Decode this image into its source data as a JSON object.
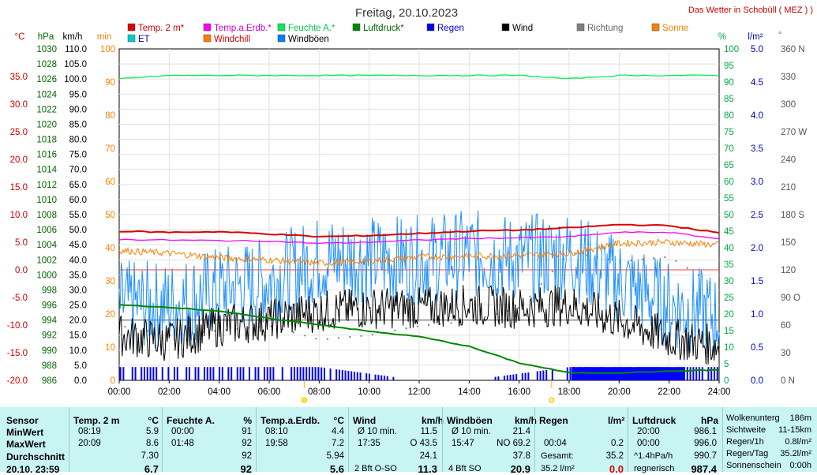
{
  "header": {
    "title": "Freitag, 20.10.2023",
    "site": "Das Wetter in Schobüll ( MEZ ) )"
  },
  "legend": [
    {
      "label": "Temp. 2 m*",
      "color": "#dd0000",
      "text_color": "#cc0000"
    },
    {
      "label": "Temp.a.Erdb.*",
      "color": "#ff00ff",
      "text_color": "#cc00cc"
    },
    {
      "label": "Feuchte A.*",
      "color": "#00ee55",
      "text_color": "#00cc44"
    },
    {
      "label": "Luftdruck*",
      "color": "#008800",
      "text_color": "#006600"
    },
    {
      "label": "Regen",
      "color": "#0000ff",
      "text_color": "#0000cc"
    },
    {
      "label": "Wind",
      "color": "#000000",
      "text_color": "#000000"
    },
    {
      "label": "Richtung",
      "color": "#808080",
      "text_color": "#666666"
    },
    {
      "label": "Sonne",
      "color": "#ff8000",
      "text_color": "#ff8000"
    },
    {
      "label": "ET",
      "color": "#00cccc",
      "text_color": "#0000cc"
    },
    {
      "label": "Windchill",
      "color": "#ff8000",
      "text_color": "#cc0000"
    },
    {
      "label": "Windböen",
      "color": "#0080ff",
      "text_color": "#000000"
    }
  ],
  "chart_data": {
    "type": "line",
    "x_range": [
      "00:00",
      "24:00"
    ],
    "x_ticks": [
      "00:00",
      "02:00",
      "04:00",
      "06:00",
      "08:00",
      "10:00",
      "12:00",
      "14:00",
      "16:00",
      "18:00",
      "20:00",
      "22:00",
      "24:00"
    ],
    "axes": {
      "temp": {
        "unit": "°C",
        "range": [
          -20,
          40
        ],
        "ticks": [
          "35.0",
          "30.0",
          "25.0",
          "20.0",
          "15.0",
          "10.0",
          "5.0",
          "0.0",
          "-5.0",
          "-10.0",
          "-15.0",
          "-20.0"
        ]
      },
      "pressure": {
        "unit": "hPa",
        "range": [
          986,
          1030
        ],
        "ticks": [
          "1030",
          "1028",
          "1026",
          "1024",
          "1022",
          "1020",
          "1018",
          "1016",
          "1014",
          "1012",
          "1010",
          "1008",
          "1006",
          "1004",
          "1002",
          "1000",
          "998",
          "996",
          "994",
          "992",
          "990",
          "988",
          "986"
        ]
      },
      "wind": {
        "unit": "km/h",
        "range": [
          0,
          110
        ],
        "ticks": [
          "110.0",
          "105.0",
          "100.0",
          "95.0",
          "90.0",
          "85.0",
          "80.0",
          "75.0",
          "70.0",
          "65.0",
          "60.0",
          "55.0",
          "50.0",
          "45.0",
          "40.0",
          "35.0",
          "30.0",
          "25.0",
          "20.0",
          "15.0",
          "10.0",
          "5.0",
          "0.0"
        ]
      },
      "sun": {
        "unit": "min",
        "range": [
          0,
          100
        ],
        "ticks": [
          "100",
          "90",
          "80",
          "70",
          "60",
          "50",
          "40",
          "30",
          "20",
          "10",
          "0"
        ]
      },
      "humidity": {
        "unit": "%",
        "range": [
          0,
          100
        ],
        "ticks": [
          "100",
          "95",
          "90",
          "85",
          "80",
          "75",
          "70",
          "65",
          "60",
          "55",
          "50",
          "45",
          "40",
          "35",
          "30",
          "25",
          "20",
          "15",
          "10",
          "5",
          "0"
        ]
      },
      "rain": {
        "unit": "l/m²",
        "range": [
          0,
          5
        ],
        "ticks": [
          "5.0",
          "4.5",
          "4.0",
          "3.5",
          "3.0",
          "2.5",
          "2.0",
          "1.5",
          "1.0",
          "0.5",
          "0.0"
        ]
      },
      "direction": {
        "unit": "°",
        "range": [
          0,
          360
        ],
        "ticks": [
          "360 N",
          "330",
          "300",
          "270 W",
          "240",
          "210",
          "180 S",
          "150",
          "120",
          "90 O",
          "60",
          "30",
          "0 N"
        ]
      }
    },
    "series": [
      {
        "name": "Temp. 2 m*",
        "axis": "temp",
        "x": [
          0,
          2,
          4,
          6,
          8,
          10,
          12,
          14,
          16,
          18,
          20,
          22,
          24
        ],
        "y": [
          7.0,
          6.8,
          6.9,
          6.5,
          6.0,
          6.2,
          6.6,
          7.0,
          7.2,
          7.6,
          8.2,
          8.0,
          6.7
        ]
      },
      {
        "name": "Temp.a.Erdb.*",
        "axis": "temp",
        "x": [
          0,
          2,
          4,
          6,
          8,
          10,
          12,
          14,
          16,
          18,
          20,
          22,
          24
        ],
        "y": [
          5.5,
          5.4,
          5.3,
          5.2,
          4.8,
          5.0,
          5.4,
          5.7,
          5.8,
          6.0,
          6.8,
          6.8,
          5.6
        ]
      },
      {
        "name": "Feuchte A.*",
        "axis": "humidity",
        "x": [
          0,
          2,
          4,
          6,
          8,
          10,
          12,
          14,
          16,
          18,
          20,
          22,
          24
        ],
        "y": [
          91,
          92,
          92,
          92,
          92,
          92,
          92,
          92,
          92,
          91,
          92,
          92,
          92
        ]
      },
      {
        "name": "Luftdruck*",
        "axis": "pressure",
        "x": [
          0,
          2,
          4,
          6,
          8,
          10,
          12,
          14,
          16,
          18,
          20,
          22,
          24
        ],
        "y": [
          996.0,
          995.7,
          995.2,
          994.2,
          993.4,
          992.5,
          991.8,
          990.5,
          988.3,
          987.0,
          987.0,
          987.2,
          987.4
        ]
      },
      {
        "name": "Windchill",
        "axis": "temp",
        "x": [
          0,
          2,
          4,
          6,
          8,
          10,
          12,
          14,
          16,
          18,
          20,
          22,
          24
        ],
        "y": [
          3.5,
          3.0,
          2.2,
          1.8,
          1.2,
          1.6,
          2.3,
          2.5,
          2.6,
          3.0,
          4.8,
          5.0,
          4.5
        ]
      },
      {
        "name": "Wind",
        "axis": "wind",
        "x": [
          0,
          2,
          4,
          6,
          8,
          10,
          12,
          14,
          16,
          18,
          20,
          22,
          24
        ],
        "y": [
          15,
          13,
          18,
          20,
          23,
          24,
          24,
          25,
          24,
          25,
          20,
          14,
          11.3
        ]
      },
      {
        "name": "Windböen",
        "axis": "wind",
        "x": [
          0,
          2,
          4,
          6,
          8,
          10,
          12,
          14,
          16,
          18,
          20,
          22,
          24
        ],
        "y": [
          25,
          25,
          30,
          33,
          40,
          40,
          40,
          42,
          40,
          42,
          33,
          25,
          20.9
        ]
      },
      {
        "name": "Regen",
        "axis": "rain",
        "x": [
          0,
          2,
          4,
          6,
          8,
          10,
          12,
          14,
          16,
          18,
          20,
          22,
          24
        ],
        "y": [
          0.2,
          0.2,
          0.2,
          0.2,
          0.2,
          0.1,
          0.0,
          0.0,
          0.1,
          0.2,
          0.2,
          0.2,
          0.2
        ]
      },
      {
        "name": "Richtung",
        "axis": "direction",
        "x": [
          0,
          2,
          4,
          6,
          8,
          10,
          12,
          14,
          16,
          18,
          20,
          22,
          24
        ],
        "y": [
          60,
          50,
          55,
          60,
          45,
          50,
          60,
          65,
          80,
          140,
          130,
          135,
          100
        ]
      }
    ],
    "markers": [
      "sunrise",
      "sunset"
    ],
    "grid": true
  },
  "stats": {
    "row_labels": [
      "Sensor",
      "MinWert",
      "MaxWert",
      "Durchschnitt",
      "20.10. 23:59"
    ],
    "columns": [
      {
        "title": "Temp. 2 m",
        "unit": "°C",
        "min_time": "08:19",
        "min": "5.9",
        "max_time": "20:09",
        "max": "8.6",
        "avg": "7.30",
        "current": "6.7"
      },
      {
        "title": "Feuchte A.",
        "unit": "%",
        "min_time": "00:00",
        "min": "91",
        "max_time": "01:48",
        "max": "92",
        "avg": "92",
        "current": "92"
      },
      {
        "title": "Temp.a.Erdb.",
        "unit": "°C",
        "min_time": "08:10",
        "min": "4.4",
        "max_time": "19:58",
        "max": "7.2",
        "avg": "5.94",
        "current": "5.6"
      },
      {
        "title": "Wind",
        "unit": "km/h",
        "min_time": "Ø 10 min.",
        "min": "11.5",
        "max_time": "17:35",
        "max": "O 43.5",
        "avg": "24.1",
        "current_label": "2 Bft O-SO",
        "current": "11.3"
      },
      {
        "title": "Windböen",
        "unit": "km/h",
        "min_time": "Ø 10 min.",
        "min": "21.4",
        "max_time": "15:47",
        "max": "NO 69.2",
        "avg": "37.8",
        "current_label": "4 Bft SO",
        "current": "20.9"
      },
      {
        "title": "Regen",
        "unit": "l/m²",
        "min_time": "",
        "min": "",
        "max_time": "00:04",
        "max": "0.2",
        "avg_label": "Gesamt:",
        "avg": "35.2",
        "current_label": "35.2 l/m²",
        "current": "0.0"
      },
      {
        "title": "Luftdruck",
        "unit": "hPa",
        "min_time": "20:00",
        "min": "986.1",
        "max_time": "00:00",
        "max": "996.0",
        "avg_label": "^1.4hPa/h",
        "avg": "990.7",
        "current_label": "regnerisch",
        "current": "987.4"
      }
    ],
    "extra": [
      {
        "label": "Wolkenuntergrenze",
        "label_shown": "Wolkenunterg",
        "value": "186m"
      },
      {
        "label": "Sichtweite",
        "value": "11-15km"
      },
      {
        "label": "Regen/1h",
        "value": "0.8l/m²"
      },
      {
        "label": "Regen/Tag",
        "value": "35.2l/m²"
      },
      {
        "label": "Sonnenschein",
        "value": "0:00h"
      }
    ]
  }
}
